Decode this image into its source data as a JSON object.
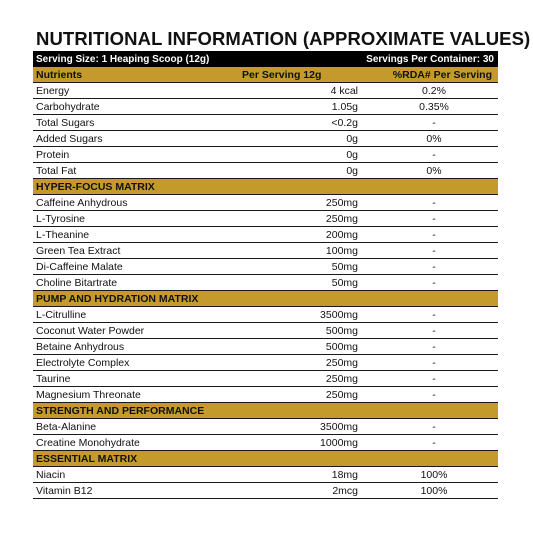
{
  "title": "NUTRITIONAL INFORMATION (APPROXIMATE VALUES)",
  "serving_size": "Serving Size: 1 Heaping Scoop (12g)",
  "servings_per_container": "Servings Per Container: 30",
  "header": {
    "nutrient": "Nutrients",
    "per_serving": "Per Serving 12g",
    "rda": "%RDA# Per Serving"
  },
  "nutrients": [
    {
      "name": "Energy",
      "amount": "4 kcal",
      "rda": "0.2%"
    },
    {
      "name": "Carbohydrate",
      "amount": "1.05g",
      "rda": "0.35%"
    },
    {
      "name": "Total Sugars",
      "amount": "<0.2g",
      "rda": "-"
    },
    {
      "name": "Added Sugars",
      "amount": "0g",
      "rda": "0%"
    },
    {
      "name": "Protein",
      "amount": "0g",
      "rda": "-"
    },
    {
      "name": "Total Fat",
      "amount": "0g",
      "rda": "0%"
    }
  ],
  "sections": [
    {
      "title": "HYPER-FOCUS MATRIX",
      "items": [
        {
          "name": "Caffeine Anhydrous",
          "amount": "250mg",
          "rda": "-"
        },
        {
          "name": "L-Tyrosine",
          "amount": "250mg",
          "rda": "-"
        },
        {
          "name": "L-Theanine",
          "amount": "200mg",
          "rda": "-"
        },
        {
          "name": "Green Tea Extract",
          "amount": "100mg",
          "rda": "-"
        },
        {
          "name": "Di-Caffeine Malate",
          "amount": "50mg",
          "rda": "-"
        },
        {
          "name": "Choline Bitartrate",
          "amount": "50mg",
          "rda": "-"
        }
      ]
    },
    {
      "title": "PUMP AND HYDRATION MATRIX",
      "items": [
        {
          "name": "L-Citrulline",
          "amount": "3500mg",
          "rda": "-"
        },
        {
          "name": "Coconut Water Powder",
          "amount": "500mg",
          "rda": "-"
        },
        {
          "name": "Betaine Anhydrous",
          "amount": "500mg",
          "rda": "-"
        },
        {
          "name": "Electrolyte Complex",
          "amount": "250mg",
          "rda": "-"
        },
        {
          "name": "Taurine",
          "amount": "250mg",
          "rda": "-"
        },
        {
          "name": "Magnesium Threonate",
          "amount": "250mg",
          "rda": "-"
        }
      ]
    },
    {
      "title": "STRENGTH AND PERFORMANCE",
      "items": [
        {
          "name": "Beta-Alanine",
          "amount": "3500mg",
          "rda": "-"
        },
        {
          "name": "Creatine Monohydrate",
          "amount": "1000mg",
          "rda": "-"
        }
      ]
    },
    {
      "title": "ESSENTIAL MATRIX",
      "items": [
        {
          "name": "Niacin",
          "amount": "18mg",
          "rda": "100%"
        },
        {
          "name": "Vitamin B12",
          "amount": "2mcg",
          "rda": "100%"
        }
      ]
    }
  ],
  "colors": {
    "gold": "#c39a2b",
    "black": "#000000"
  }
}
